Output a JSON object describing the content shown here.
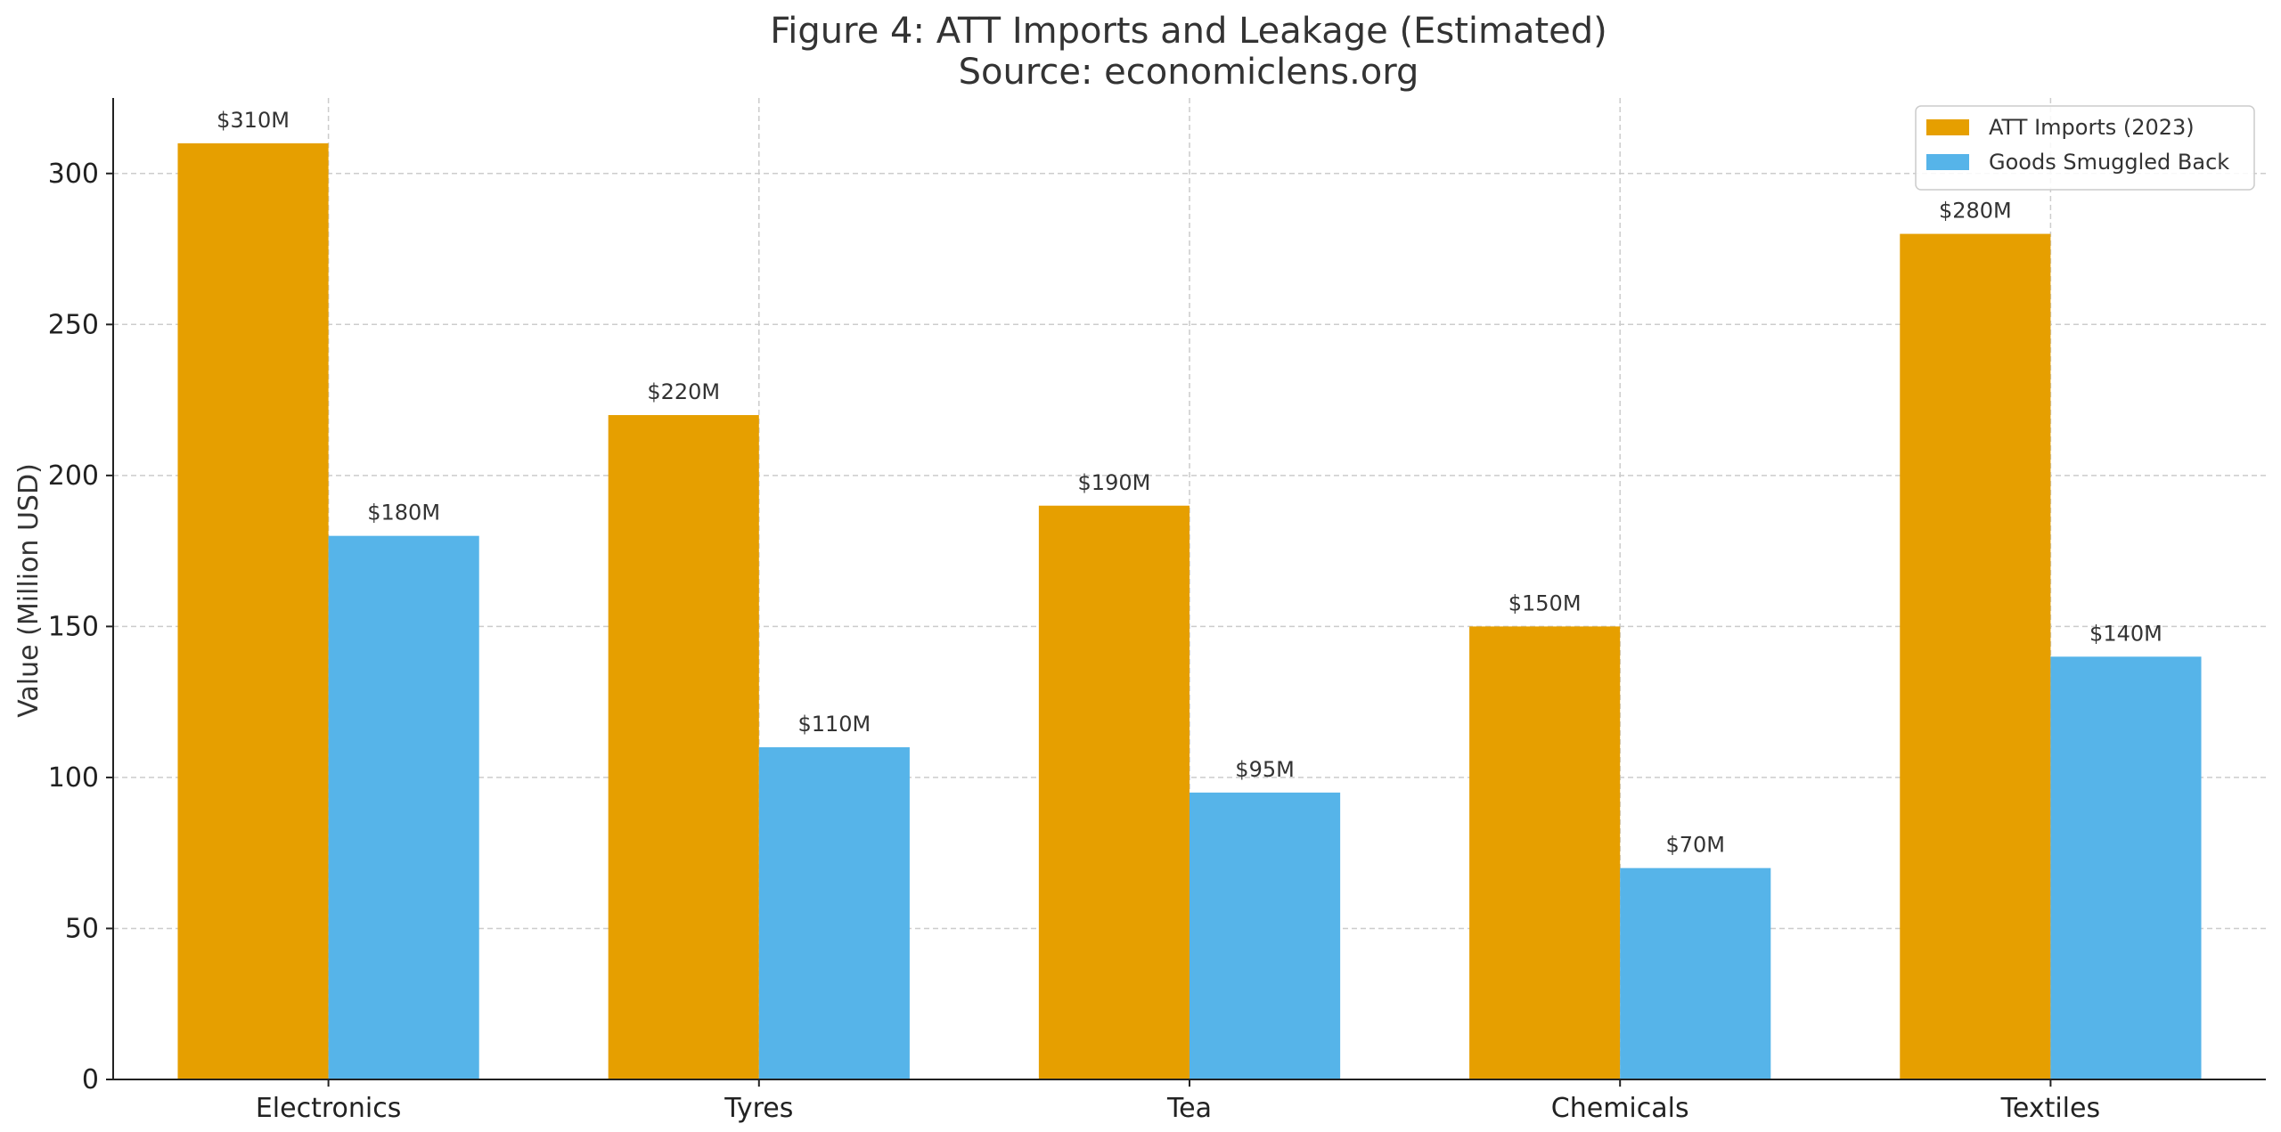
{
  "chart_data": {
    "type": "bar",
    "title": "Figure 4: ATT Imports and Leakage (Estimated)",
    "subtitle": "Source: economiclens.org",
    "xlabel": "",
    "ylabel": "Value (Million USD)",
    "categories": [
      "Electronics",
      "Tyres",
      "Tea",
      "Chemicals",
      "Textiles"
    ],
    "ylim": [
      0,
      325
    ],
    "yticks": [
      0,
      50,
      100,
      150,
      200,
      250,
      300
    ],
    "grid": true,
    "legend_position": "top-right",
    "series": [
      {
        "name": "ATT Imports (2023)",
        "color": "#E69F00",
        "values": [
          310,
          220,
          190,
          150,
          280
        ],
        "labels": [
          "$310M",
          "$220M",
          "$190M",
          "$150M",
          "$280M"
        ]
      },
      {
        "name": "Goods Smuggled Back",
        "color": "#56B4E9",
        "values": [
          180,
          110,
          95,
          70,
          140
        ],
        "labels": [
          "$180M",
          "$110M",
          "$95M",
          "$70M",
          "$140M"
        ]
      }
    ]
  }
}
